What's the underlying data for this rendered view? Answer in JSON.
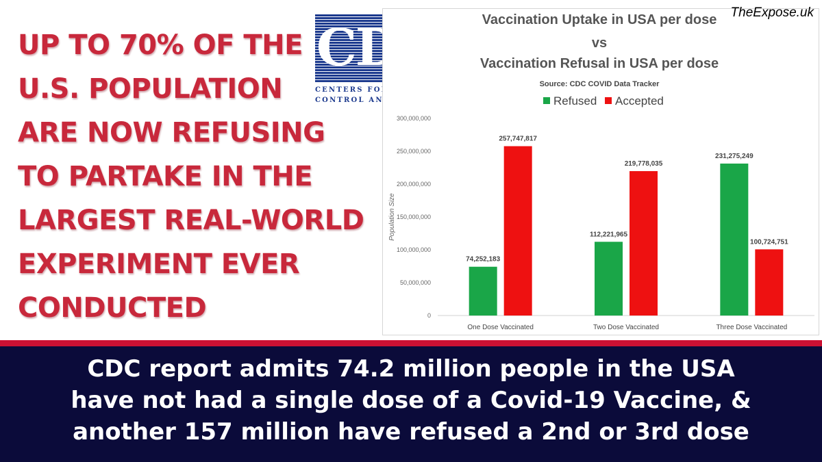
{
  "headline": {
    "lines": [
      "UP TO 70% OF THE",
      "U.S. POPULATION",
      "ARE NOW REFUSING",
      "TO PARTAKE IN THE",
      "LARGEST REAL-WORLD",
      "EXPERIMENT EVER",
      "CONDUCTED"
    ],
    "color": "#c8283b"
  },
  "logo": {
    "letters": "CDC",
    "tagline_1": "CENTERS FOR DISEASE™",
    "tagline_2": "CONTROL AND PREVENTION",
    "color": "#1c3a8e"
  },
  "watermark": "TheExpose.uk",
  "banner": {
    "lines": [
      "CDC report admits 74.2 million people in the USA",
      "have not had a single dose of a Covid-19 Vaccine, &",
      "another 157 million have refused a 2nd or 3rd dose"
    ],
    "background": "#0b0b3a",
    "rule_color": "#cc1133"
  },
  "chart_data": {
    "type": "bar",
    "title_lines": [
      "Vaccination Uptake in USA per dose",
      "vs",
      "Vaccination Refusal in USA per dose"
    ],
    "subtitle": "Source: CDC COVID Data Tracker",
    "xlabel": "",
    "ylabel": "Population Size",
    "ylim": [
      0,
      300000000
    ],
    "yticks": [
      "0",
      "50,000,000",
      "100,000,000",
      "150,000,000",
      "200,000,000",
      "250,000,000",
      "300,000,000"
    ],
    "ytick_values": [
      0,
      50000000,
      100000000,
      150000000,
      200000000,
      250000000,
      300000000
    ],
    "categories": [
      "One Dose Vaccinated",
      "Two Dose Vaccinated",
      "Three Dose Vaccinated"
    ],
    "series": [
      {
        "name": "Refused",
        "color": "#1aa648",
        "values": [
          74252183,
          112221965,
          231275249
        ],
        "labels": [
          "74,252,183",
          "112,221,965",
          "231,275,249"
        ]
      },
      {
        "name": "Accepted",
        "color": "#ee1111",
        "values": [
          257747817,
          219778035,
          100724751
        ],
        "labels": [
          "257,747,817",
          "219,778,035",
          "100,724,751"
        ]
      }
    ],
    "legend_position": "top-center",
    "grid": false
  }
}
